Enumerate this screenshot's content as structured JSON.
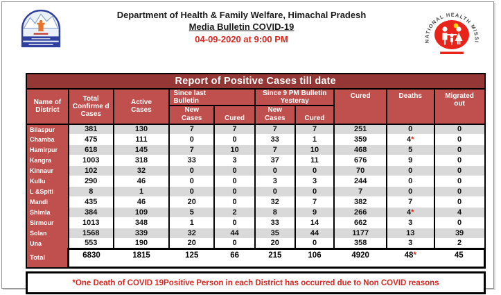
{
  "header": {
    "dept_line": "Department of Health & Family Welfare, Himachal Pradesh",
    "bulletin_line": "Media Bulletin COVID-19",
    "datetime_line": "04-09-2020 at 9:00 PM"
  },
  "logos": {
    "left_name": "himachal-pradesh-government-emblem",
    "nhm_text": "NATIONAL HEALTH MISSION"
  },
  "colors": {
    "title_bar": "#953735",
    "header_cell": "#c0504d",
    "row_stripe": "#d9d9d9",
    "accent_red": "#d9261e"
  },
  "table": {
    "title": "Report of Positive Cases till date",
    "headers": {
      "district": "Name of District",
      "total_confirmed": "Total Confirme d Cases",
      "active": "Active Cases",
      "since_last": "Since last Bulletin",
      "since_9pm": "Since 9 PM Bulletin Yesteray",
      "new_cases_1": "New Cases",
      "cured_1": "Cured",
      "new_cases_2": "New Cases",
      "cured_2": "Cured",
      "cured": "Cured",
      "deaths": "Deaths",
      "migrated": "Migrated out"
    },
    "rows": [
      {
        "district": "Bilaspur",
        "values": [
          "381",
          "130",
          "7",
          "7",
          "7",
          "7",
          "251",
          "0",
          "0"
        ]
      },
      {
        "district": "Chamba",
        "values": [
          "475",
          "111",
          "0",
          "0",
          "33",
          "1",
          "359",
          "4*",
          "0"
        ]
      },
      {
        "district": "Hamirpur",
        "values": [
          "618",
          "145",
          "7",
          "10",
          "7",
          "10",
          "468",
          "5",
          "0"
        ]
      },
      {
        "district": "Kangra",
        "values": [
          "1003",
          "318",
          "33",
          "3",
          "37",
          "11",
          "676",
          "9",
          "0"
        ]
      },
      {
        "district": "Kinnaur",
        "values": [
          "102",
          "32",
          "0",
          "0",
          "0",
          "0",
          "70",
          "0",
          "0"
        ]
      },
      {
        "district": "Kullu",
        "values": [
          "290",
          "46",
          "0",
          "0",
          "3",
          "3",
          "244",
          "0",
          "0"
        ]
      },
      {
        "district": "L &Spiti",
        "values": [
          "8",
          "1",
          "0",
          "0",
          "0",
          "0",
          "7",
          "0",
          "0"
        ]
      },
      {
        "district": "Mandi",
        "values": [
          "435",
          "46",
          "20",
          "0",
          "32",
          "7",
          "382",
          "7",
          "0"
        ]
      },
      {
        "district": "Shimla",
        "values": [
          "384",
          "109",
          "5",
          "2",
          "8",
          "9",
          "266",
          "4*",
          "4"
        ]
      },
      {
        "district": "Sirmour",
        "values": [
          "1013",
          "348",
          "1",
          "0",
          "33",
          "14",
          "662",
          "3",
          "0"
        ]
      },
      {
        "district": "Solan",
        "values": [
          "1568",
          "339",
          "32",
          "44",
          "35",
          "44",
          "1177",
          "13",
          "39"
        ]
      },
      {
        "district": "Una",
        "values": [
          "553",
          "190",
          "20",
          "0",
          "20",
          "0",
          "358",
          "3",
          "2"
        ]
      }
    ],
    "total": {
      "district": "Total",
      "values": [
        "6830",
        "1815",
        "125",
        "66",
        "215",
        "106",
        "4920",
        "48*",
        "45"
      ]
    }
  },
  "footnote": "*One Death of COVID 19Positive Person in each District has occurred due to Non COVID reasons"
}
